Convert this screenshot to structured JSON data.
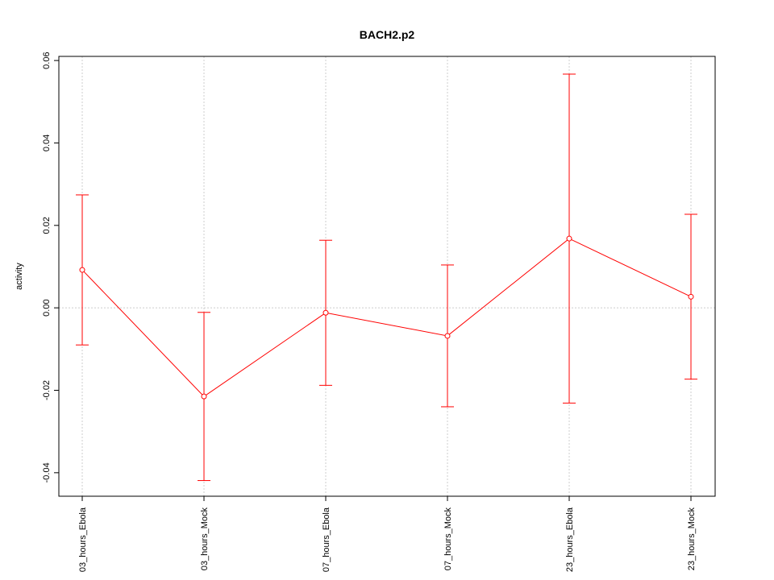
{
  "chart_data": {
    "type": "errorbar_line",
    "title": "BACH2.p2",
    "ylabel": "activity",
    "categories": [
      "03_hours_Ebola",
      "03_hours_Mock",
      "07_hours_Ebola",
      "07_hours_Mock",
      "23_hours_Ebola",
      "23_hours_Mock"
    ],
    "values": [
      0.0092,
      -0.0215,
      -0.0012,
      -0.0068,
      0.0168,
      0.0027
    ],
    "errors": [
      0.0182,
      0.0204,
      0.0176,
      0.0172,
      0.0399,
      0.02
    ],
    "color": "#ff0000",
    "ylim": [
      -0.0457,
      0.061
    ],
    "yticks": [
      -0.04,
      -0.02,
      {
        "value": 0,
        "label": "0.00"
      },
      0.02,
      0.04,
      0.06
    ],
    "reference_line": 0,
    "grid": true
  }
}
